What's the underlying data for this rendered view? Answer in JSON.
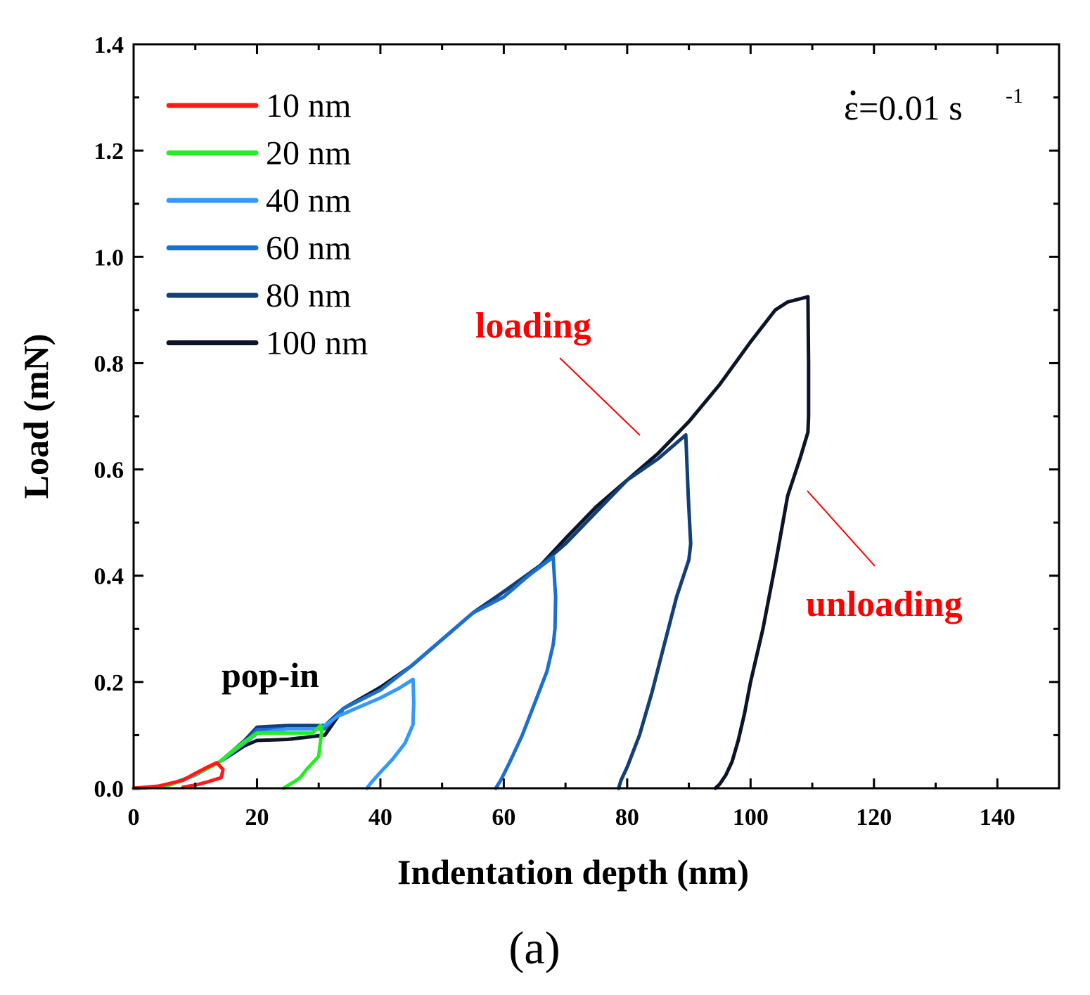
{
  "chart_data": {
    "type": "line",
    "title": "",
    "xlabel": "Indentation depth (nm)",
    "ylabel": "Load (mN)",
    "xlim": [
      0,
      150
    ],
    "ylim": [
      0,
      1.4
    ],
    "xticks": [
      0,
      20,
      40,
      60,
      80,
      100,
      120,
      140
    ],
    "yticks": [
      0.0,
      0.2,
      0.4,
      0.6,
      0.8,
      1.0,
      1.2,
      1.4
    ],
    "xtick_labels": [
      "0",
      "20",
      "40",
      "60",
      "80",
      "100",
      "120",
      "140"
    ],
    "ytick_labels": [
      "0.0",
      "0.2",
      "0.4",
      "0.6",
      "0.8",
      "1.0",
      "1.2",
      "1.4"
    ],
    "grid": false,
    "legend_position": "top-left",
    "series": [
      {
        "name": "10 nm",
        "color": "#ff1a1a",
        "x": [
          0,
          4,
          8,
          10,
          12,
          13.5,
          14.5,
          14.2,
          12,
          10,
          8
        ],
        "y": [
          0,
          0.004,
          0.015,
          0.028,
          0.04,
          0.048,
          0.035,
          0.02,
          0.012,
          0.006,
          0.002
        ]
      },
      {
        "name": "20 nm",
        "color": "#22ee22",
        "x": [
          0,
          5,
          8,
          10,
          12,
          14,
          16,
          18,
          20,
          23,
          27,
          29,
          30.3,
          30.5,
          30.2,
          30,
          28,
          27,
          26,
          25,
          24.3
        ],
        "y": [
          0,
          0.003,
          0.015,
          0.027,
          0.037,
          0.05,
          0.07,
          0.088,
          0.104,
          0.104,
          0.104,
          0.104,
          0.118,
          0.11,
          0.08,
          0.06,
          0.035,
          0.02,
          0.012,
          0.005,
          0.0
        ]
      },
      {
        "name": "40 nm",
        "color": "#3399ff",
        "x": [
          0,
          5,
          10,
          14,
          18,
          20,
          25,
          30,
          31,
          33,
          36,
          40,
          43,
          45.3,
          45.4,
          45.3,
          45.3,
          44,
          42,
          40,
          38.6,
          37.8
        ],
        "y": [
          0,
          0.003,
          0.025,
          0.05,
          0.085,
          0.103,
          0.112,
          0.112,
          0.118,
          0.135,
          0.15,
          0.17,
          0.188,
          0.205,
          0.16,
          0.13,
          0.12,
          0.085,
          0.055,
          0.03,
          0.012,
          0.0
        ]
      },
      {
        "name": "60 nm",
        "color": "#1c6fce",
        "x": [
          0,
          5,
          10,
          14,
          18,
          20,
          25,
          31,
          34,
          40,
          45,
          50,
          55,
          60,
          64,
          68,
          68.4,
          68.3,
          68,
          67,
          65,
          63,
          61,
          59.5,
          58.7
        ],
        "y": [
          0,
          0.003,
          0.025,
          0.05,
          0.085,
          0.11,
          0.112,
          0.112,
          0.15,
          0.185,
          0.23,
          0.28,
          0.33,
          0.36,
          0.4,
          0.435,
          0.36,
          0.3,
          0.27,
          0.22,
          0.16,
          0.1,
          0.05,
          0.015,
          0.0
        ]
      },
      {
        "name": "80 nm",
        "color": "#123f75",
        "x": [
          0,
          5,
          10,
          14,
          18,
          20,
          25,
          31,
          34,
          40,
          45,
          50,
          55,
          60,
          66,
          70,
          75,
          80,
          85,
          89.5,
          89.9,
          90.2,
          90.3,
          90,
          88,
          86,
          84,
          82,
          80,
          79,
          78.6
        ],
        "y": [
          0,
          0.003,
          0.025,
          0.05,
          0.09,
          0.115,
          0.118,
          0.118,
          0.15,
          0.185,
          0.23,
          0.28,
          0.33,
          0.37,
          0.42,
          0.46,
          0.52,
          0.58,
          0.62,
          0.665,
          0.55,
          0.48,
          0.46,
          0.43,
          0.36,
          0.27,
          0.18,
          0.1,
          0.04,
          0.015,
          0.0
        ]
      },
      {
        "name": "100 nm",
        "color": "#0b1428",
        "x": [
          0,
          5,
          10,
          14,
          18,
          20,
          25,
          31,
          34,
          40,
          45,
          50,
          55,
          60,
          66,
          70,
          75,
          80,
          85,
          90,
          95,
          100,
          104,
          106,
          109.3,
          109.4,
          109.4,
          109.3,
          108,
          106,
          104,
          102,
          100,
          99,
          98,
          97,
          96,
          95,
          94.3
        ],
        "y": [
          0,
          0.003,
          0.025,
          0.05,
          0.08,
          0.09,
          0.092,
          0.1,
          0.15,
          0.19,
          0.23,
          0.28,
          0.33,
          0.37,
          0.42,
          0.47,
          0.53,
          0.58,
          0.63,
          0.69,
          0.76,
          0.84,
          0.9,
          0.915,
          0.925,
          0.8,
          0.7,
          0.67,
          0.62,
          0.55,
          0.42,
          0.3,
          0.2,
          0.14,
          0.09,
          0.05,
          0.025,
          0.008,
          0.0
        ]
      }
    ],
    "annotations": {
      "loading": "loading",
      "unloading": "unloading",
      "popin": "pop-in",
      "strain_rate": "ε=0.01 s",
      "strain_rate_superscript": "-1",
      "panel": "(a)"
    }
  }
}
